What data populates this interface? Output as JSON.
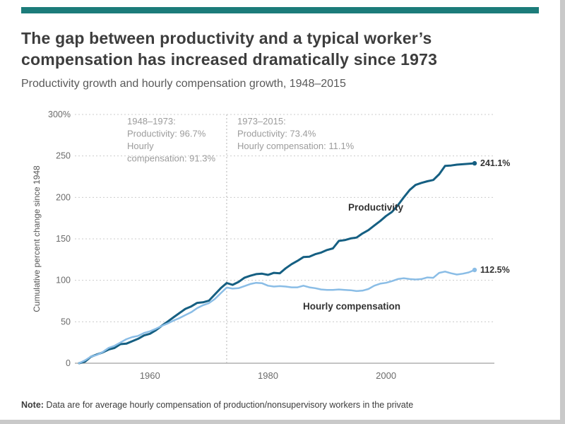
{
  "colors": {
    "accent": "#1c7c7a",
    "grid": "#cccccc",
    "axis_text": "#6b6b6b",
    "annotation_text": "#9c9c9c",
    "label_text": "#333333"
  },
  "header": {
    "title": "The gap between productivity and a typical worker’s compensation has increased dramatically since 1973",
    "subtitle": "Productivity growth and hourly compensation growth, 1948–2015"
  },
  "chart_data": {
    "type": "line",
    "ylabel": "Cumulative percent change since 1948",
    "ylim": [
      0,
      300
    ],
    "yticks": [
      0,
      50,
      100,
      150,
      200,
      250,
      300
    ],
    "ytick_labels": [
      "0",
      "50",
      "100",
      "150",
      "200",
      "250",
      "300%"
    ],
    "xlim": [
      1948,
      2015
    ],
    "xticks": [
      1960,
      1980,
      2000
    ],
    "divider_year": 1973,
    "x": [
      1948,
      1949,
      1950,
      1951,
      1952,
      1953,
      1954,
      1955,
      1956,
      1957,
      1958,
      1959,
      1960,
      1961,
      1962,
      1963,
      1964,
      1965,
      1966,
      1967,
      1968,
      1969,
      1970,
      1971,
      1972,
      1973,
      1974,
      1975,
      1976,
      1977,
      1978,
      1979,
      1980,
      1981,
      1982,
      1983,
      1984,
      1985,
      1986,
      1987,
      1988,
      1989,
      1990,
      1991,
      1992,
      1993,
      1994,
      1995,
      1996,
      1997,
      1998,
      1999,
      2000,
      2001,
      2002,
      2003,
      2004,
      2005,
      2006,
      2007,
      2008,
      2009,
      2010,
      2011,
      2012,
      2013,
      2014,
      2015
    ],
    "series": [
      {
        "name": "Productivity",
        "color": "#155f82",
        "end_label": "241.1%",
        "values": [
          0,
          2.0,
          7.8,
          10.5,
          13.0,
          16.5,
          18.4,
          23.0,
          23.6,
          26.5,
          29.5,
          33.5,
          35.5,
          39.8,
          45.2,
          50.2,
          55.4,
          60.5,
          65.5,
          68.5,
          72.8,
          73.5,
          75.5,
          83.0,
          90.5,
          96.7,
          94.5,
          98.0,
          103.0,
          105.5,
          107.5,
          108.0,
          106.5,
          109.0,
          108.5,
          114.5,
          119.5,
          123.5,
          128.0,
          128.5,
          131.5,
          133.5,
          136.5,
          138.5,
          147.5,
          148.5,
          150.5,
          151.5,
          156.5,
          160.5,
          166.0,
          171.5,
          177.5,
          182.5,
          190.5,
          200.0,
          209.0,
          215.0,
          217.5,
          219.5,
          221.0,
          228.0,
          238.0,
          238.5,
          239.5,
          240.0,
          240.5,
          241.1
        ]
      },
      {
        "name": "Hourly compensation",
        "color": "#8abde6",
        "end_label": "112.5%",
        "values": [
          0,
          3.5,
          8.0,
          10.0,
          13.5,
          18.5,
          21.0,
          25.0,
          29.0,
          31.5,
          33.0,
          36.5,
          38.5,
          41.5,
          45.0,
          48.0,
          51.5,
          54.5,
          58.0,
          61.5,
          66.5,
          70.0,
          72.5,
          77.5,
          84.5,
          91.3,
          90.0,
          90.5,
          93.0,
          95.5,
          97.0,
          96.5,
          93.5,
          92.5,
          93.0,
          92.5,
          91.5,
          91.5,
          93.5,
          91.5,
          90.5,
          89.0,
          88.5,
          88.5,
          89.0,
          88.5,
          88.0,
          87.0,
          87.5,
          89.5,
          93.5,
          96.0,
          97.0,
          99.0,
          101.5,
          102.5,
          101.5,
          101.0,
          101.5,
          103.5,
          103.0,
          109.0,
          110.5,
          108.5,
          107.0,
          108.0,
          109.5,
          112.5
        ]
      }
    ],
    "annotations": [
      {
        "lines": [
          "1948–1973:",
          "Productivity: 96.7%",
          "Hourly",
          "compensation: 91.3%"
        ]
      },
      {
        "lines": [
          "1973–2015:",
          "Productivity: 73.4%",
          "Hourly compensation: 11.1%"
        ]
      }
    ]
  },
  "note": {
    "label": "Note:",
    "text": " Data are for average hourly compensation of production/nonsupervisory workers in the private"
  }
}
